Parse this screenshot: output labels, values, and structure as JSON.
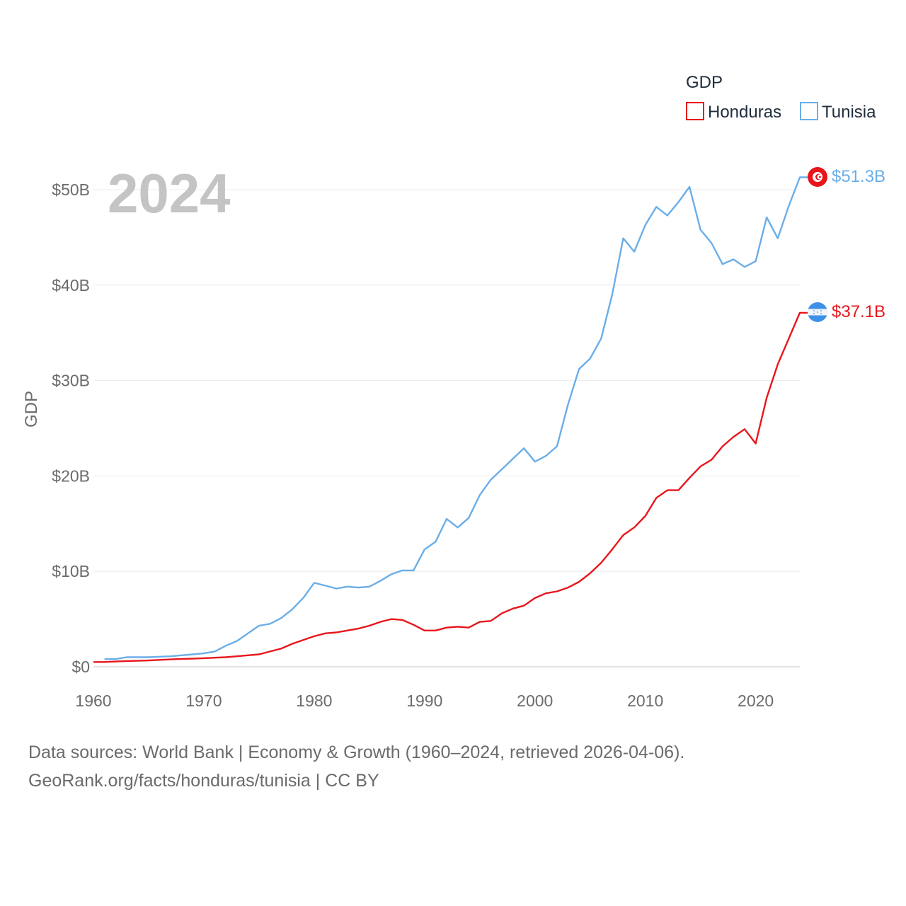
{
  "chart_data": {
    "type": "line",
    "title": "GDP",
    "xlabel": "",
    "ylabel": "GDP",
    "year_watermark": "2024",
    "x_ticks": [
      "1960",
      "1970",
      "1980",
      "1990",
      "2000",
      "2010",
      "2020"
    ],
    "y_ticks": [
      "$0",
      "$10B",
      "$20B",
      "$30B",
      "$40B",
      "$50B"
    ],
    "xlim": [
      1960,
      2024
    ],
    "ylim": [
      0,
      50
    ],
    "y_units": "billions USD",
    "grid": true,
    "legend_position": "top-right",
    "series": [
      {
        "name": "Honduras",
        "color": "#e8161c",
        "end_label": "$37.1B",
        "flag_icon": "honduras-flag-icon",
        "x": [
          1960,
          1961,
          1962,
          1963,
          1964,
          1965,
          1966,
          1967,
          1968,
          1969,
          1970,
          1971,
          1972,
          1973,
          1974,
          1975,
          1976,
          1977,
          1978,
          1979,
          1980,
          1981,
          1982,
          1983,
          1984,
          1985,
          1986,
          1987,
          1988,
          1989,
          1990,
          1991,
          1992,
          1993,
          1994,
          1995,
          1996,
          1997,
          1998,
          1999,
          2000,
          2001,
          2002,
          2003,
          2004,
          2005,
          2006,
          2007,
          2008,
          2009,
          2010,
          2011,
          2012,
          2013,
          2014,
          2015,
          2016,
          2017,
          2018,
          2019,
          2020,
          2021,
          2022,
          2023,
          2024
        ],
        "values": [
          0.5,
          0.5,
          0.55,
          0.6,
          0.62,
          0.66,
          0.72,
          0.77,
          0.82,
          0.85,
          0.9,
          0.95,
          1.0,
          1.1,
          1.2,
          1.3,
          1.6,
          1.9,
          2.4,
          2.8,
          3.2,
          3.5,
          3.6,
          3.8,
          4.0,
          4.3,
          4.7,
          5.0,
          4.9,
          4.4,
          3.8,
          3.8,
          4.1,
          4.2,
          4.1,
          4.7,
          4.8,
          5.6,
          6.1,
          6.4,
          7.2,
          7.7,
          7.9,
          8.3,
          8.9,
          9.8,
          10.9,
          12.3,
          13.8,
          14.6,
          15.8,
          17.7,
          18.5,
          18.5,
          19.8,
          21.0,
          21.7,
          23.1,
          24.1,
          24.9,
          23.4,
          28.2,
          31.7,
          34.4,
          37.1
        ]
      },
      {
        "name": "Tunisia",
        "color": "#6aaee8",
        "end_label": "$51.3B",
        "flag_icon": "tunisia-flag-icon",
        "x": [
          1961,
          1962,
          1963,
          1964,
          1965,
          1966,
          1967,
          1968,
          1969,
          1970,
          1971,
          1972,
          1973,
          1974,
          1975,
          1976,
          1977,
          1978,
          1979,
          1980,
          1981,
          1982,
          1983,
          1984,
          1985,
          1986,
          1987,
          1988,
          1989,
          1990,
          1991,
          1992,
          1993,
          1994,
          1995,
          1996,
          1997,
          1998,
          1999,
          2000,
          2001,
          2002,
          2003,
          2004,
          2005,
          2006,
          2007,
          2008,
          2009,
          2010,
          2011,
          2012,
          2013,
          2014,
          2015,
          2016,
          2017,
          2018,
          2019,
          2020,
          2021,
          2022,
          2023,
          2024
        ],
        "values": [
          0.8,
          0.8,
          1.0,
          1.0,
          1.0,
          1.05,
          1.1,
          1.2,
          1.3,
          1.4,
          1.6,
          2.2,
          2.7,
          3.5,
          4.3,
          4.5,
          5.1,
          6.0,
          7.2,
          8.8,
          8.5,
          8.2,
          8.4,
          8.3,
          8.4,
          9.0,
          9.7,
          10.1,
          10.1,
          12.3,
          13.1,
          15.5,
          14.6,
          15.6,
          18.0,
          19.6,
          20.7,
          21.8,
          22.9,
          21.5,
          22.1,
          23.1,
          27.5,
          31.2,
          32.3,
          34.4,
          39.0,
          44.9,
          43.5,
          46.3,
          48.2,
          47.3,
          48.7,
          50.3,
          45.8,
          44.4,
          42.2,
          42.7,
          41.9,
          42.5,
          47.1,
          44.9,
          48.3,
          51.3
        ]
      }
    ]
  },
  "legend": {
    "title": "GDP",
    "items": [
      "Honduras",
      "Tunisia"
    ]
  },
  "footer": {
    "line1": "Data sources: World Bank | Economy & Growth (1960–2024, retrieved 2026-04-06).",
    "line2": "GeoRank.org/facts/honduras/tunisia | CC BY"
  }
}
